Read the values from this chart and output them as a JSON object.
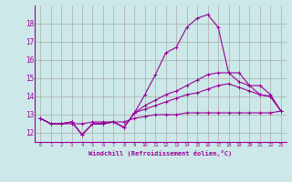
{
  "x_values": [
    0,
    1,
    2,
    3,
    4,
    5,
    6,
    7,
    8,
    9,
    10,
    11,
    12,
    13,
    14,
    15,
    16,
    17,
    18,
    19,
    20,
    21,
    22,
    23
  ],
  "line1": [
    12.8,
    12.5,
    12.5,
    12.6,
    11.9,
    12.5,
    12.5,
    12.6,
    12.3,
    13.1,
    14.1,
    15.2,
    16.4,
    16.7,
    17.8,
    18.3,
    18.5,
    17.8,
    15.3,
    15.3,
    14.6,
    14.1,
    14.0,
    13.2
  ],
  "line2": [
    12.8,
    12.5,
    12.5,
    12.6,
    11.9,
    12.5,
    12.5,
    12.6,
    12.3,
    13.1,
    13.5,
    13.8,
    14.1,
    14.3,
    14.6,
    14.9,
    15.2,
    15.3,
    15.3,
    14.8,
    14.6,
    14.6,
    14.1,
    13.2
  ],
  "line3": [
    12.8,
    12.5,
    12.5,
    12.6,
    11.9,
    12.5,
    12.5,
    12.6,
    12.3,
    13.1,
    13.3,
    13.5,
    13.7,
    13.9,
    14.1,
    14.2,
    14.4,
    14.6,
    14.7,
    14.5,
    14.3,
    14.1,
    14.0,
    13.2
  ],
  "line4": [
    12.8,
    12.5,
    12.5,
    12.5,
    12.5,
    12.6,
    12.6,
    12.6,
    12.6,
    12.8,
    12.9,
    13.0,
    13.0,
    13.0,
    13.1,
    13.1,
    13.1,
    13.1,
    13.1,
    13.1,
    13.1,
    13.1,
    13.1,
    13.2
  ],
  "line_color": "#990099",
  "bg_color": "#cce8e8",
  "grid_color": "#aaaaaa",
  "xlabel": "Windchill (Refroidissement éolien,°C)",
  "yticks": [
    12,
    13,
    14,
    15,
    16,
    17,
    18
  ],
  "xlim": [
    -0.5,
    23.5
  ],
  "ylim": [
    11.5,
    19.0
  ],
  "marker": "+",
  "marker_size": 3,
  "line_width": 0.8
}
